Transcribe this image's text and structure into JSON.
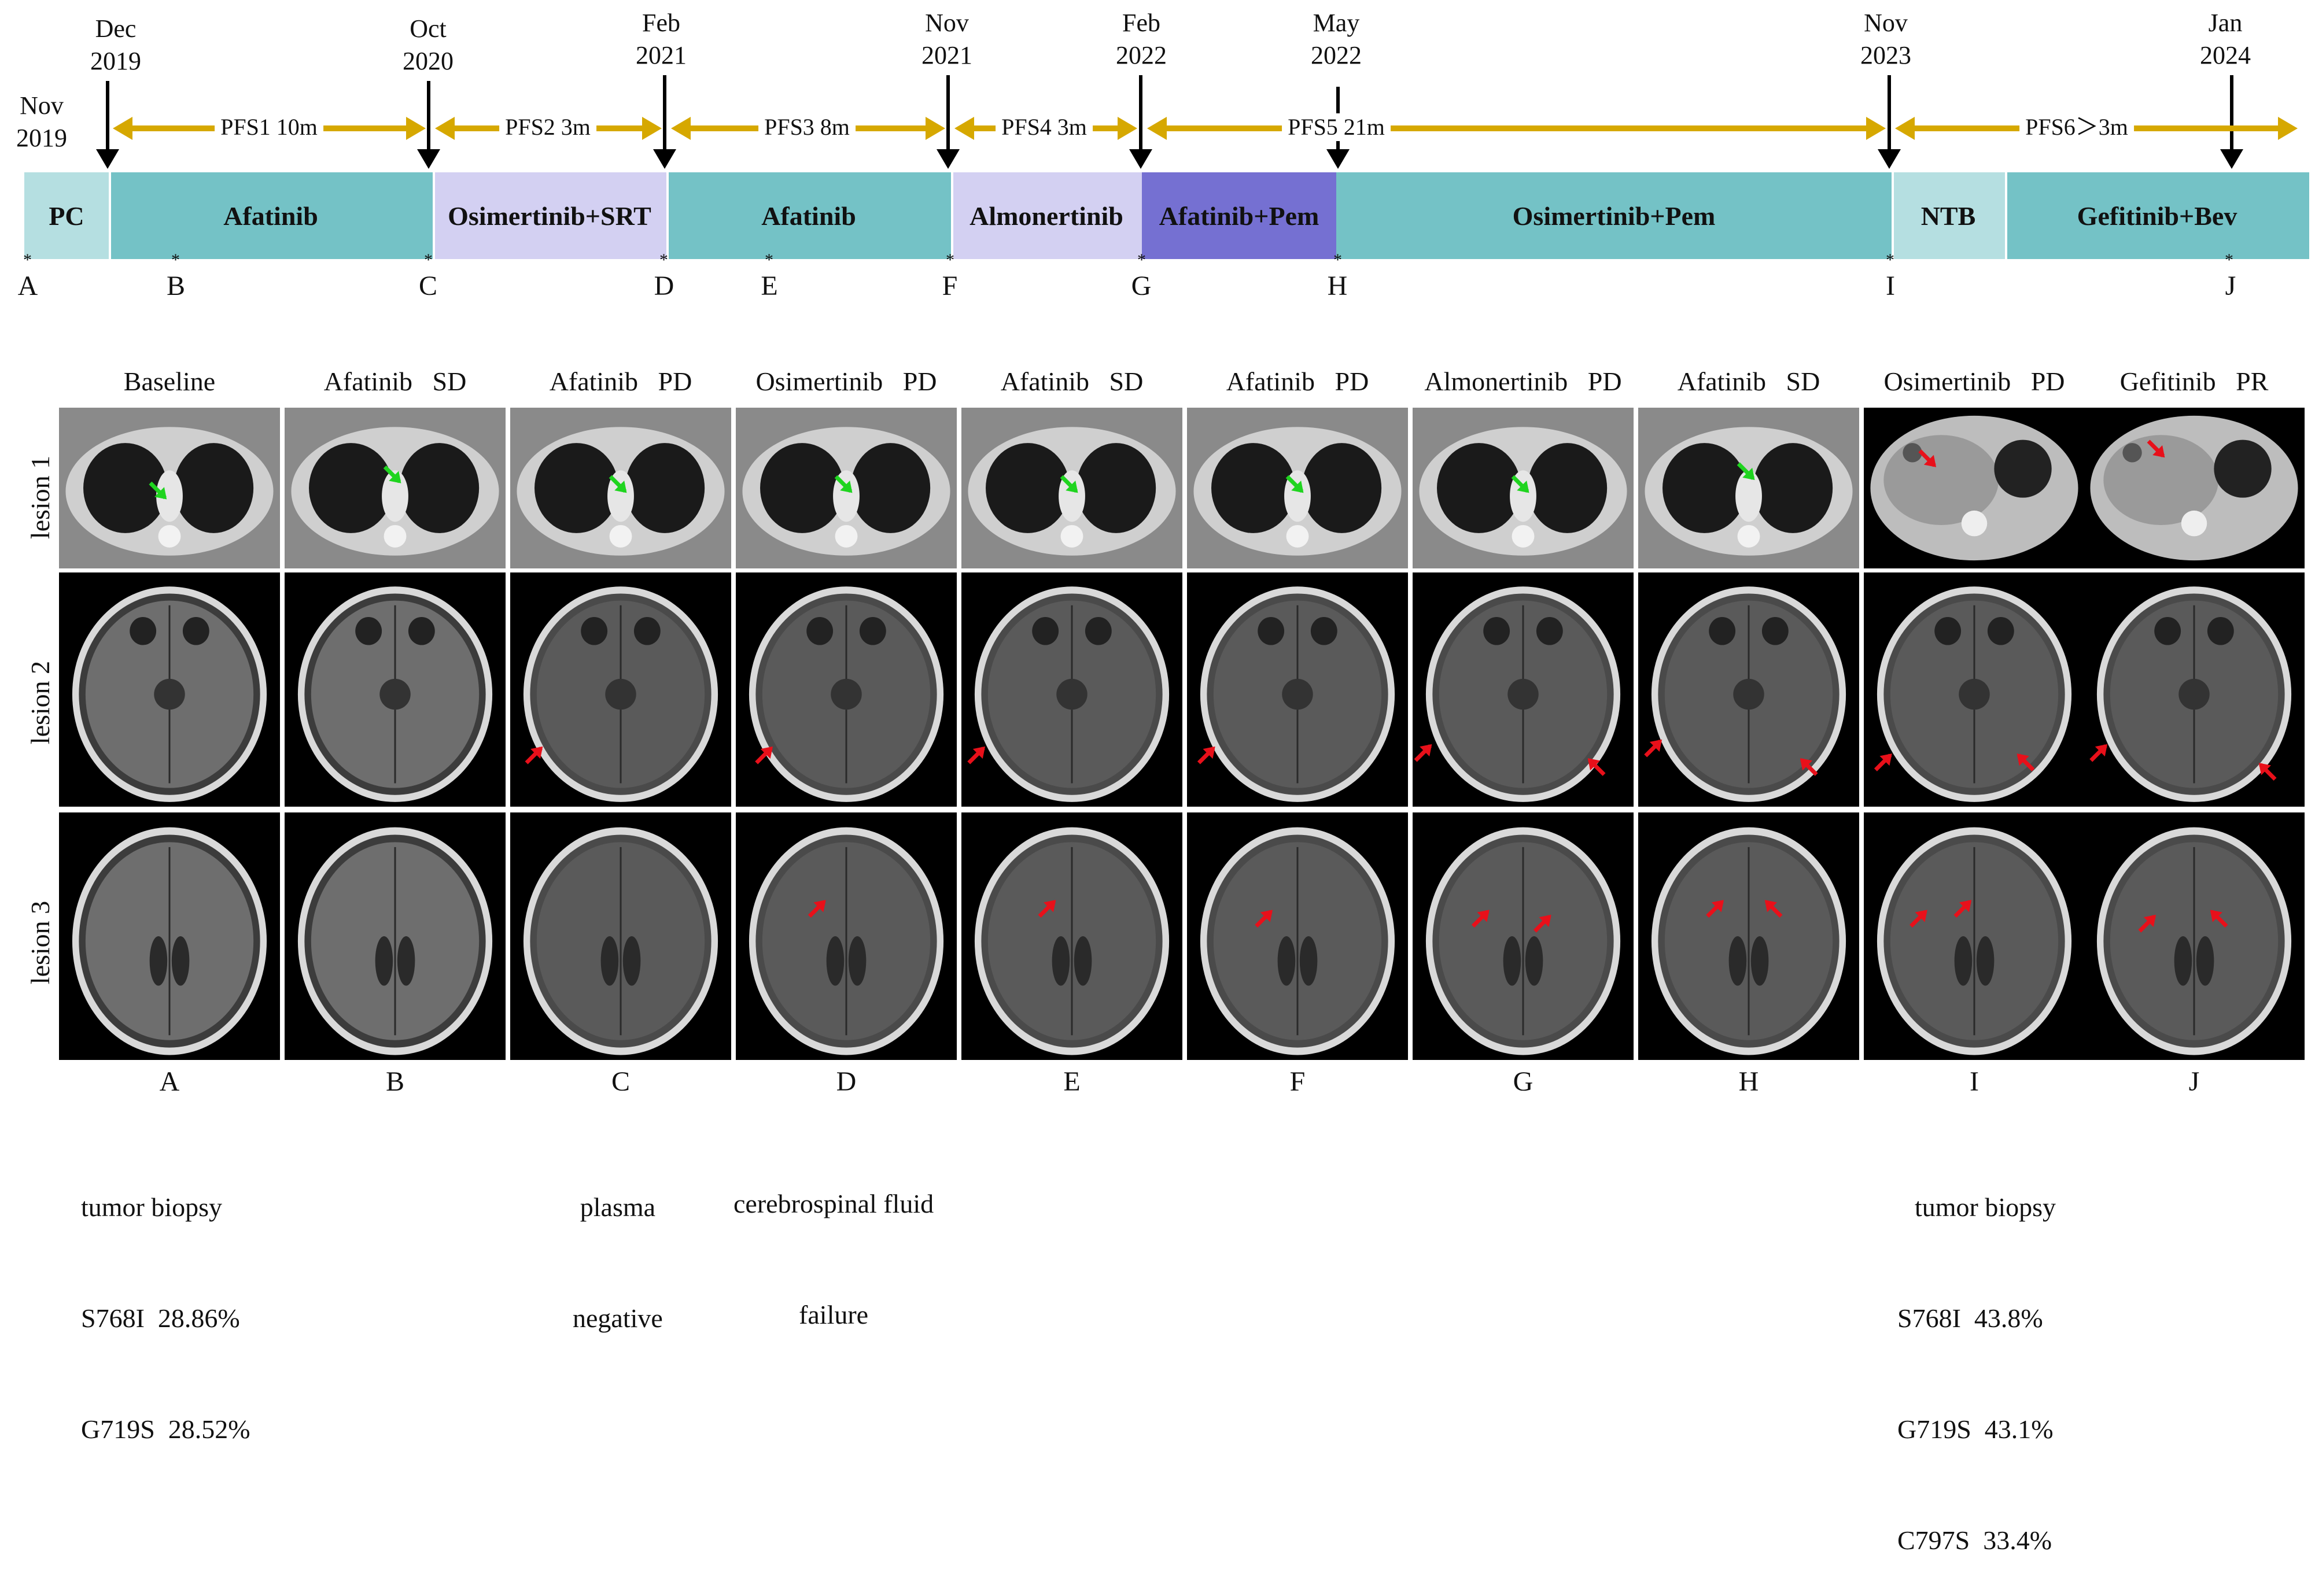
{
  "timeline": {
    "dates": [
      {
        "id": "nov2019",
        "month": "Nov",
        "year": "2019"
      },
      {
        "id": "dec2019",
        "month": "Dec",
        "year": "2019"
      },
      {
        "id": "oct2020",
        "month": "Oct",
        "year": "2020"
      },
      {
        "id": "feb2021",
        "month": "Feb",
        "year": "2021"
      },
      {
        "id": "nov2021",
        "month": "Nov",
        "year": "2021"
      },
      {
        "id": "feb2022",
        "month": "Feb",
        "year": "2022"
      },
      {
        "id": "may2022",
        "month": "May",
        "year": "2022"
      },
      {
        "id": "nov2023",
        "month": "Nov",
        "year": "2023"
      },
      {
        "id": "jan2024",
        "month": "Jan",
        "year": "2024"
      }
    ],
    "pfs": [
      "PFS1 10m",
      "PFS2 3m",
      "PFS3 8m",
      "PFS4 3m",
      "PFS5 21m",
      "PFS6＞3m"
    ],
    "treatments": [
      {
        "label": "PC",
        "color": "#b5dfe1"
      },
      {
        "label": "Afatinib",
        "color": "#74c2c6"
      },
      {
        "label": "Osimertinib+SRT",
        "color": "#d3d0f2"
      },
      {
        "label": "Afatinib",
        "color": "#74c2c6"
      },
      {
        "label": "Almonertinib",
        "color": "#d3d0f2"
      },
      {
        "label": "Afatinib+Pem",
        "color": "#7570d2"
      },
      {
        "label": "Osimertinib+Pem",
        "color": "#74c2c6"
      },
      {
        "label": "NTB",
        "color": "#b5dfe1"
      },
      {
        "label": "Gefitinib+Bev",
        "color": "#74c2c6"
      }
    ],
    "points": [
      "A",
      "B",
      "C",
      "D",
      "E",
      "F",
      "G",
      "H",
      "I",
      "J"
    ],
    "star": "*"
  },
  "grid": {
    "columns": [
      {
        "drug": "Baseline",
        "resp": ""
      },
      {
        "drug": "Afatinib",
        "resp": "SD"
      },
      {
        "drug": "Afatinib",
        "resp": "PD"
      },
      {
        "drug": "Osimertinib",
        "resp": "PD"
      },
      {
        "drug": "Afatinib",
        "resp": "SD"
      },
      {
        "drug": "Afatinib",
        "resp": "PD"
      },
      {
        "drug": "Almonertinib",
        "resp": "PD"
      },
      {
        "drug": "Afatinib",
        "resp": "SD"
      },
      {
        "drug": "Osimertinib",
        "resp": "PD"
      },
      {
        "drug": "Gefitinib",
        "resp": "PR"
      }
    ],
    "rows": [
      "lesion 1",
      "lesion 2",
      "lesion 3"
    ],
    "letters": [
      "A",
      "B",
      "C",
      "D",
      "E",
      "F",
      "G",
      "H",
      "I",
      "J"
    ]
  },
  "notes": {
    "a": [
      "tumor biopsy",
      "S768I  28.86%",
      "G719S  28.52%"
    ],
    "c": [
      "plasma",
      "negative"
    ],
    "d": [
      "cerebrospinal fluid",
      "failure"
    ],
    "i": [
      "tumor biopsy",
      "S768I  43.8%",
      "G719S  43.1%",
      "C797S  33.4%"
    ]
  },
  "colors": {
    "pfs_arrow": "#d6a800",
    "green_marker": "#1fd41f",
    "red_marker": "#e8101a"
  },
  "icons": [
    "green-arrow-icon",
    "red-arrow-icon",
    "down-arrow-icon"
  ]
}
